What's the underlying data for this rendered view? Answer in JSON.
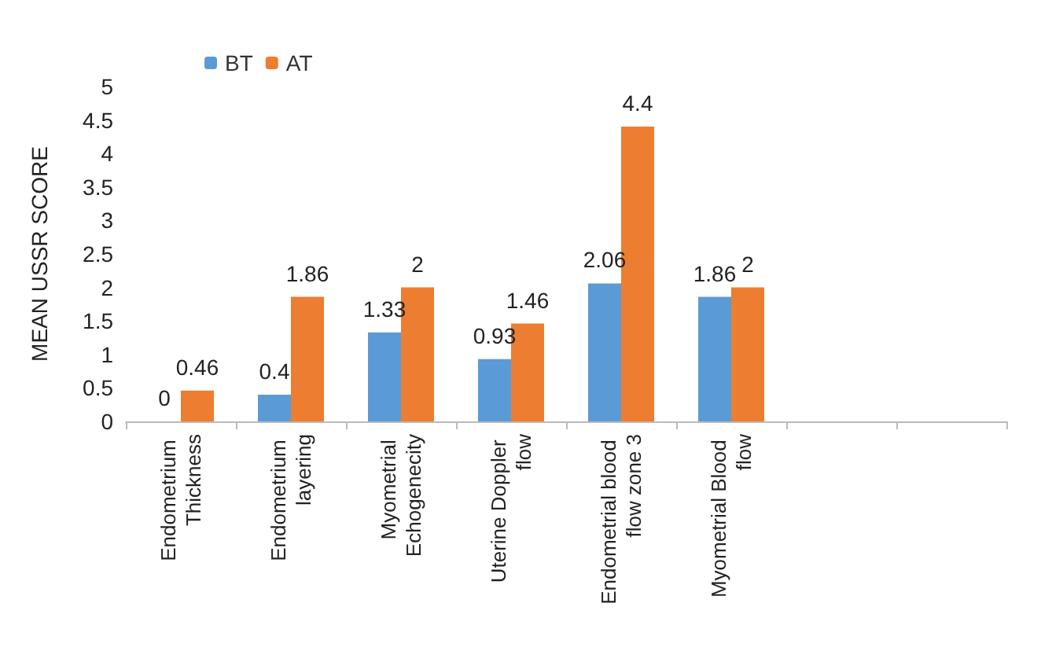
{
  "chart_data": {
    "type": "bar",
    "ylabel": "MEAN USSR SCORE",
    "categories": [
      "Endometrium Thickness",
      "Endometrium layering",
      "Myometrial Echogenecity",
      "Uterine Doppler flow",
      "Endometrial blood flow zone 3",
      "Myometrial Blood flow",
      null,
      null
    ],
    "series": [
      {
        "name": "BT",
        "color": "#5b9bd5",
        "values": [
          0,
          0.4,
          1.33,
          0.93,
          2.06,
          1.86,
          null,
          null
        ]
      },
      {
        "name": "AT",
        "color": "#ed7d31",
        "values": [
          0.46,
          1.86,
          2,
          1.46,
          4.4,
          2,
          null,
          null
        ]
      }
    ],
    "ylim": [
      0,
      5
    ],
    "yticks": [
      0,
      0.5,
      1,
      1.5,
      2,
      2.5,
      3,
      3.5,
      4,
      4.5,
      5
    ],
    "grid": false,
    "legend": "top",
    "data_labels": true
  }
}
